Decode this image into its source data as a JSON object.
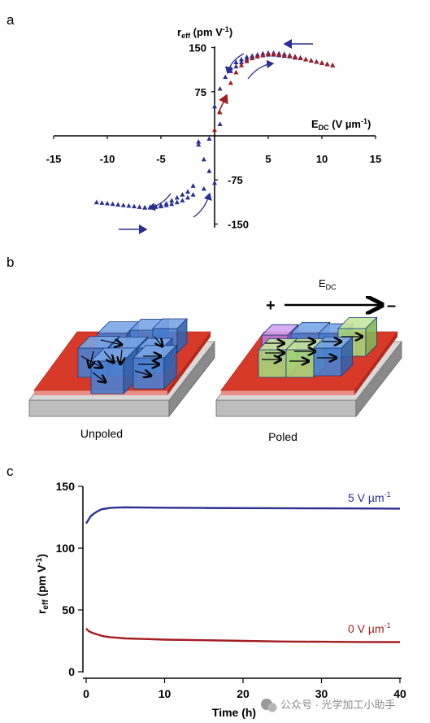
{
  "panel_labels": {
    "a": "a",
    "b": "b",
    "c": "c"
  },
  "colors": {
    "blue": "#2b2f91",
    "red": "#a11d21",
    "cube_blue": "#4a7fd0",
    "cube_green": "#a9d47a",
    "cube_purple": "#b57ad6",
    "substrate_red": "#d83a2a",
    "base_gray": "#c9c9c9"
  },
  "panel_a": {
    "y_axis_label": {
      "main": "r",
      "sub": "eff",
      "rest": " (pm V",
      "sup": "-1",
      "close": ")"
    },
    "x_axis_label": {
      "main": "E",
      "sub": "DC",
      "rest": " (V µm",
      "sup": "-1",
      "close": ")"
    }
  },
  "panel_b": {
    "field_label": {
      "main": "E",
      "sub": "DC"
    },
    "plus_sign": "+",
    "minus_sign": "–",
    "unpoled_label": "Unpoled",
    "poled_label": "Poled"
  },
  "panel_c": {
    "y_axis_label": {
      "main": "r",
      "sub": "eff",
      "rest": " (pm V",
      "sup": "-1",
      "close": ")"
    },
    "x_axis_label": "Time (h)",
    "series_labels": [
      {
        "prefix": "5 V µm",
        "sup": "-1"
      },
      {
        "prefix": "0 V µm",
        "sup": "-1"
      }
    ]
  },
  "watermark": "公众号 · 光学加工小助手",
  "chart_data": [
    {
      "type": "scatter",
      "title": "",
      "xlabel": "EDC (V µm-1)",
      "ylabel": "reff (pm V-1)",
      "xlim": [
        -15,
        15
      ],
      "ylim": [
        -150,
        150
      ],
      "x_ticks": [
        -15,
        -10,
        -5,
        0,
        5,
        10,
        15
      ],
      "y_ticks": [
        -150,
        -75,
        75,
        150
      ],
      "grid": false,
      "series": [
        {
          "marker": "triangle",
          "color": "#2b2f91",
          "x": [
            0,
            0.5,
            1.0,
            1.5,
            2.0,
            2.5,
            3.0,
            3.5,
            4.0,
            4.5,
            5.0,
            5.5,
            6.0,
            6.5,
            7.0,
            7.5,
            8.0,
            8.5,
            9.0,
            9.5,
            10.0,
            10.5,
            11.0,
            1.5,
            2.0,
            2.5,
            3.0,
            3.5,
            4.0,
            4.5,
            5.0,
            5.5,
            6.0,
            6.5,
            7.0,
            7.5,
            8.0,
            8.5,
            9.0,
            9.5,
            10.0,
            10.5,
            11.0,
            0.5,
            -0.5,
            -1.5,
            -1.5,
            -1.0,
            -0.5,
            0,
            -1.0,
            -2.0,
            -2.5,
            -3.0,
            -3.5,
            -4.0,
            -4.5,
            -5.0,
            -5.5,
            -6.0,
            -6.5,
            -7.0,
            -7.5,
            -8.0,
            -8.5,
            -9.0,
            -9.5,
            -10.0,
            -10.5,
            -11.0,
            -2.0,
            -2.5,
            -3.0,
            -3.5,
            -4.0,
            -4.5,
            -5.0,
            -5.5,
            -6.0,
            -6.5
          ],
          "y": [
            50,
            80,
            100,
            110,
            118,
            125,
            130,
            133,
            135,
            137,
            138,
            138,
            137,
            136,
            135,
            133,
            132,
            130,
            128,
            126,
            124,
            122,
            120,
            115,
            125,
            130,
            134,
            136,
            138,
            140,
            141,
            141,
            140,
            139,
            137,
            135,
            133,
            130,
            128,
            126,
            124,
            122,
            120,
            20,
            -5,
            -10,
            -15,
            -40,
            -60,
            -80,
            -90,
            -100,
            -105,
            -110,
            -113,
            -116,
            -118,
            -120,
            -121,
            -122,
            -122,
            -121,
            -120,
            -119,
            -118,
            -117,
            -116,
            -115,
            -114,
            -113,
            -85,
            -95,
            -100,
            -105,
            -110,
            -115,
            -118,
            -120,
            -121,
            -122
          ]
        },
        {
          "marker": "triangle",
          "color": "#a11d21",
          "x": [
            0,
            0.5,
            1.0,
            1.5,
            2.0,
            2.5,
            3.0,
            3.5,
            4.0,
            4.5,
            5.0,
            5.5,
            6.0,
            6.5,
            7.0,
            7.5,
            8.0,
            8.5,
            9.0,
            9.5,
            10.0,
            10.5,
            11.0
          ],
          "y": [
            10,
            40,
            65,
            90,
            108,
            120,
            127,
            132,
            135,
            137,
            139,
            139,
            138,
            137,
            136,
            134,
            132,
            130,
            128,
            126,
            124,
            122,
            120
          ]
        }
      ]
    },
    {
      "type": "line",
      "title": "",
      "xlabel": "Time (h)",
      "ylabel": "reff (pm V-1)",
      "xlim": [
        0,
        40
      ],
      "ylim": [
        0,
        150
      ],
      "x_ticks": [
        0,
        10,
        20,
        30,
        40
      ],
      "y_ticks": [
        0,
        50,
        100,
        150
      ],
      "grid": false,
      "series": [
        {
          "name": "5 V µm-1",
          "color": "#2b2f91",
          "x": [
            0,
            0.3,
            0.6,
            1.0,
            1.5,
            2.0,
            2.5,
            3.0,
            4.0,
            5.0,
            7.5,
            10,
            15,
            20,
            25,
            30,
            35,
            40
          ],
          "y": [
            120,
            123,
            126,
            128,
            130,
            131.5,
            132,
            132.5,
            132.8,
            133,
            132.8,
            132.7,
            132.5,
            132.4,
            132.3,
            132.2,
            132.1,
            132
          ]
        },
        {
          "name": "0 V µm-1",
          "color": "#a11d21",
          "x": [
            0,
            0.3,
            0.6,
            1.0,
            1.5,
            2.0,
            2.5,
            3.0,
            4.0,
            5.0,
            7.5,
            10,
            15,
            20,
            25,
            30,
            35,
            40
          ],
          "y": [
            35,
            33,
            32,
            31,
            30,
            29,
            28.5,
            28,
            27.5,
            27,
            26.5,
            26,
            25.5,
            25,
            24.5,
            24.3,
            24.1,
            24
          ]
        }
      ]
    }
  ]
}
